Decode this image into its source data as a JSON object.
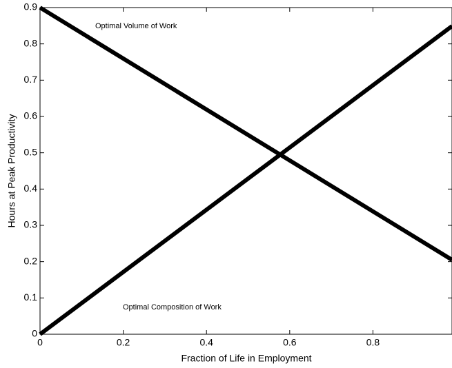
{
  "chart_data": {
    "type": "line",
    "xlabel": "Fraction of Life in Employment",
    "ylabel": "Hours at Peak Productivity",
    "x": [
      0,
      0.99
    ],
    "series": [
      {
        "name": "Optimal Volume of Work",
        "color": "#000000",
        "values": [
          0.9,
          0.205
        ]
      },
      {
        "name": "Optimal Composition of Work",
        "color": "#000000",
        "values": [
          0,
          0.849
        ]
      }
    ],
    "xlim": [
      0,
      0.99
    ],
    "xticks": [
      0,
      0.2,
      0.4,
      0.6,
      0.8
    ],
    "ylim": [
      0,
      0.9
    ],
    "yticks": [
      0,
      0.1,
      0.2,
      0.3,
      0.4,
      0.5,
      0.6,
      0.7,
      0.8,
      0.9
    ],
    "grid": false
  }
}
